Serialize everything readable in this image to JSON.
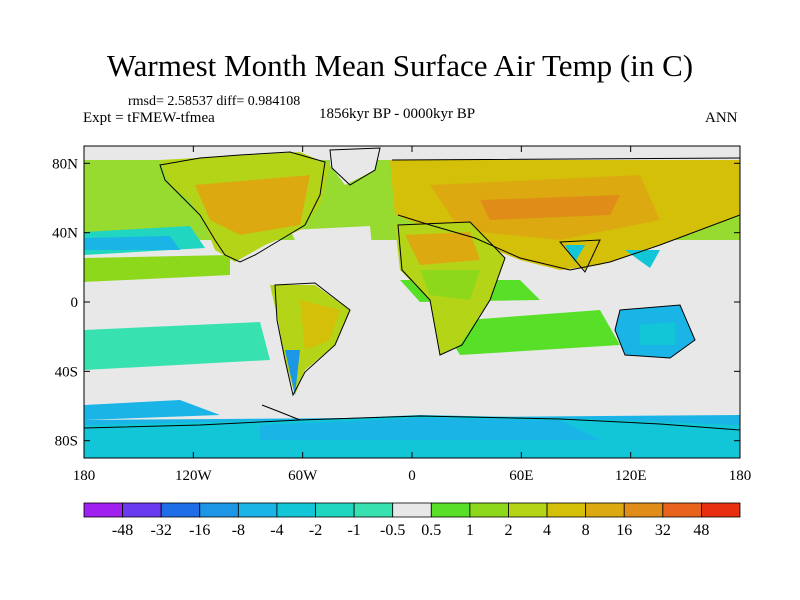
{
  "title": "Warmest Month Mean Surface Air Temp (in C)",
  "stats_text": "rmsd= 2.58537 diff= 0.984108",
  "experiment_text": "Expt = tFMEW-tfmea",
  "period_text": "1856kyr BP - 0000kyr BP",
  "season_text": "ANN",
  "map": {
    "projection": "cylindrical-equidistant",
    "lon_range": [
      -180,
      180
    ],
    "lat_range": [
      -90,
      90
    ],
    "lat_ticks": [
      {
        "value": 80,
        "label": "80N"
      },
      {
        "value": 40,
        "label": "40N"
      },
      {
        "value": 0,
        "label": "0"
      },
      {
        "value": -40,
        "label": "40S"
      },
      {
        "value": -80,
        "label": "80S"
      }
    ],
    "lon_ticks": [
      {
        "value": -180,
        "label": "180"
      },
      {
        "value": -120,
        "label": "120W"
      },
      {
        "value": -60,
        "label": "60W"
      },
      {
        "value": 0,
        "label": "0"
      },
      {
        "value": 60,
        "label": "60E"
      },
      {
        "value": 120,
        "label": "120E"
      },
      {
        "value": 180,
        "label": "180"
      }
    ]
  },
  "colorbar": {
    "colors": [
      "#a020f0",
      "#6a3af0",
      "#1f6ee8",
      "#1e96e6",
      "#1ab4e6",
      "#12c6d8",
      "#20d6c0",
      "#38e2b0",
      "#e8e8e8",
      "#58e028",
      "#8ed81c",
      "#b4d418",
      "#d4c008",
      "#dcaa10",
      "#e08c18",
      "#e8641c",
      "#e83010"
    ],
    "labels": [
      "-48",
      "-32",
      "-16",
      "-8",
      "-4",
      "-2",
      "-1",
      "-0.5",
      "0.5",
      "1",
      "2",
      "4",
      "8",
      "16",
      "32",
      "48"
    ]
  }
}
